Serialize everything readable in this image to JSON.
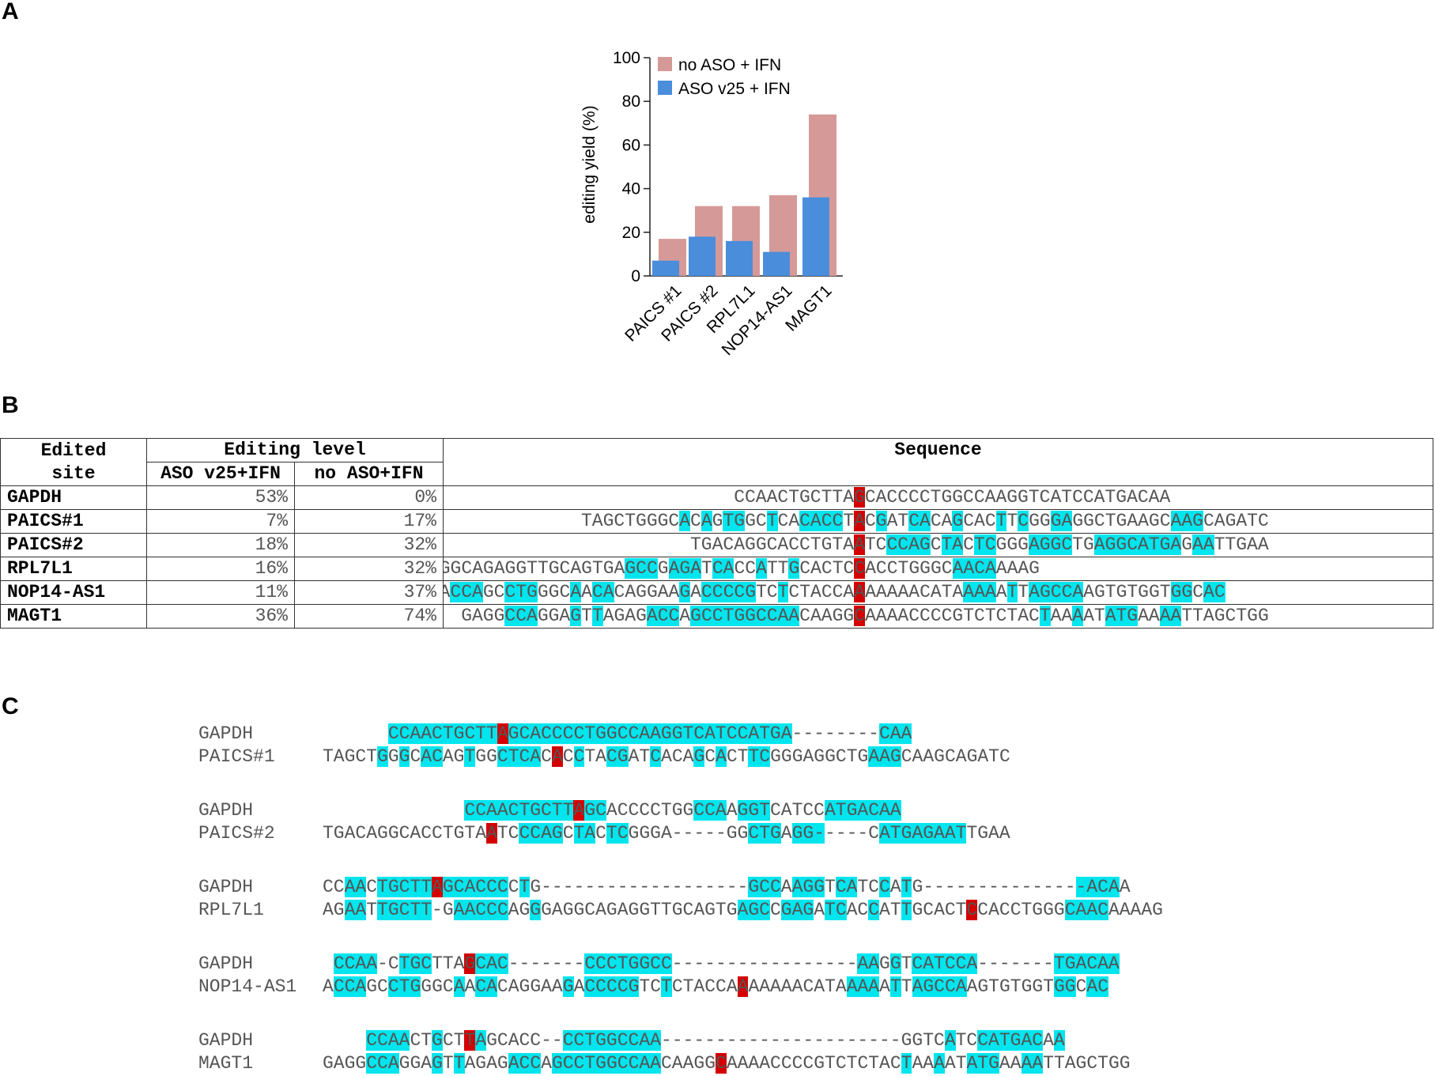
{
  "panels": {
    "a": "A",
    "b": "B",
    "c": "C"
  },
  "colors": {
    "pink": "#d59a98",
    "blue": "#4a8ddb",
    "cyan": "#00e5ee",
    "red": "#d40000"
  },
  "chart_data": {
    "type": "bar",
    "title": "",
    "xlabel": "",
    "ylabel": "editing yield (%)",
    "ylim": [
      0,
      100
    ],
    "yticks": [
      "0",
      "20",
      "40",
      "60",
      "80",
      "100"
    ],
    "categories": [
      "PAICS #1",
      "PAICS #2",
      "RPL7L1",
      "NOP14-AS1",
      "MAGT1"
    ],
    "series": [
      {
        "name": "no ASO + IFN",
        "color": "#d59a98",
        "values": [
          17,
          32,
          32,
          37,
          74
        ]
      },
      {
        "name": "ASO v25 + IFN",
        "color": "#4a8ddb",
        "values": [
          7,
          18,
          16,
          11,
          36
        ]
      }
    ],
    "legend": "top-left"
  },
  "table": {
    "header_site": "Edited site",
    "header_site_l1": "Edited",
    "header_site_l2": "site",
    "header_level": "Editing level",
    "header_aso": "ASO v25+IFN",
    "header_noaso": "no ASO+IFN",
    "header_seq": "Sequence",
    "rows": [
      {
        "site": "GAPDH",
        "aso": "53%",
        "noaso": "0%"
      },
      {
        "site": "PAICS#1",
        "aso": "7%",
        "noaso": "17%"
      },
      {
        "site": "PAICS#2",
        "aso": "18%",
        "noaso": "32%"
      },
      {
        "site": "RPL7L1",
        "aso": "16%",
        "noaso": "32%"
      },
      {
        "site": "NOP14-AS1",
        "aso": "11%",
        "noaso": "37%"
      },
      {
        "site": "MAGT1",
        "aso": "36%",
        "noaso": "74%"
      }
    ],
    "sequences": [
      {
        "seq": "CCAACTGCTTAGCACCCCTGGCCAAGGTCATCCATGACAA",
        "mask": "...........r............................"
      },
      {
        "seq": "TAGCTGGGCACAGTGGCTCACACCTACGATCACAGCACTTCGGGAGGCTGAAGCAAGCAGATC",
        "mask": ".........b.b.bb..b..bbbb.r.b..bb..b...b.b..bb.........bbb......."
      },
      {
        "seq": "TGACAGGCACCTGTAATCCCAGCTACTCGGGAGGCTGAGGCATGAGAATTGAA",
        "mask": "...............r..bbbb.bb.bb...bbbb..bbbbbbbb.bb......"
      },
      {
        "seq": "AGAATTGCTTGAACCCAGGGAGGCAGAGGTTGCAGTGAGCCGAGATCACCATTGCACTCCACCTGGGCAACAAAAG",
        "mask": "..bb.bbbbbb.bbbbb..b..................bbb.bbb.bb..b..b.....r........bbbb..."
      },
      {
        "seq": "ACCAGCCTGGGCAACACAGGAAGACCCCGTCTCTACCAAAAAAACATAAAAATTAGCCAAGTGTGGTGGCAC",
        "mask": ".bbb..bbb...b.bb......b.bbbbb..b......r.........bbb.b.bbbbb........bb.bb."
      },
      {
        "seq": "GAGGCCAGGAGTTAGAGACCAGCCTGGCCAACAAGGCAAAACCCCGTCTCTACTAAAATATGAAAATTAGCTGG",
        "mask": "....bbb...b.b....bbb.bbbbbbbbbb.....r................b..b..bbb..bb........."
      }
    ]
  },
  "alignments": [
    {
      "label_top": "GAPDH",
      "label_bottom": "PAICS#1",
      "top": "      CCAACTGCTTAGCACCCCTGGCCAAGGTCATCCATGA--------CAA",
      "top_mask": "      bbbbbbbbbbrbbbbbbbbbbbbbbbbbbbbbbbbbb........bbb",
      "bottom": "TAGCTGGGCACAGTGGCTCACACCTACGATCACAGCACTTCGGGAGGCTGAAGCAAGCAGATC",
      "bottom_mask": ".....b.b.bb..b..bbbb.r.b..bb..b...b.b..bb.........bbb.........."
    },
    {
      "label_top": "GAPDH",
      "label_bottom": "PAICS#2",
      "top": "             CCAACTGCTTAGCACCCCTGGCCAAGGTCATCCATGACAA",
      "top_mask": "             bbbbbbbbbbrbb........bbb.bbb.....bbbbbbbb",
      "bottom": "TGACAGGCACCTGTAATCCCAGCTACTCGGGA-----GGCTGAGG-----CATGAGAATTGAA",
      "bottom_mask": "...............r..bbbb.bb.bb...........bbb.bbb.....bbbbbbbb......"
    },
    {
      "label_top": "GAPDH",
      "label_bottom": "RPL7L1",
      "top": "CCAACTGCTTAGCACCCCTG-------------------GCCAAGGTCATCCATG---------------ACAA",
      "top_mask": "..bb.bbbbbrbbbbbb.b....................bbb.bbb.bb..b.b...............bbbb",
      "bottom": "AGAATTGCTT-GAACCCAGGGAGGCAGAGGTTGCAGTGAGCCGAGATCACCATTGCACTCCACCTGGGCAACAAAAG",
      "bottom_mask": "..bb.bbbbb..bbbbb..b..................bbb.bbb.bb..b..b.....r........bbbb..."
    },
    {
      "label_top": "GAPDH",
      "label_bottom": "NOP14-AS1",
      "top": " CCAA-CTGCTTAGCAC-------CCCTGGCC-----------------AAGGTCATCCA-------TGACAA",
      "top_mask": " bbbb..bbb...rbbb.......bbbbbbbb.................bb.b.bbbbbb.......bbbbbb",
      "bottom": "ACCAGCCTGGGCAACACAGGAAGACCCCGTCTCTACCAAAAAAACATAAAAATTAGCCAAGTGTGGTGGCAC",
      "bottom_mask": ".bbb..bbb...b.bb......b.bbbbb..b......r.........bbb.b.bbbbb........bb.bb."
    },
    {
      "label_top": "GAPDH",
      "label_bottom": "MAGT1",
      "top": "    CCAACTGCTTAGCACC--CCTGGCCAA----------------------GGTCATCCATGACAA",
      "top_mask": "    bbbb..b..rb.......bbbbbbbbb..........................b..bbbbbb.b",
      "bottom": "GAGGCCAGGAGTTAGAGACCAGCCTGGCCAACAAGGCAAAACCCCGTCTCTACTAAAATATGAAAATTAGCTGG",
      "bottom_mask": "....bbb...b.b....bbb.bbbbbbbbbb.....r................b..b..bbb..bb........."
    }
  ]
}
